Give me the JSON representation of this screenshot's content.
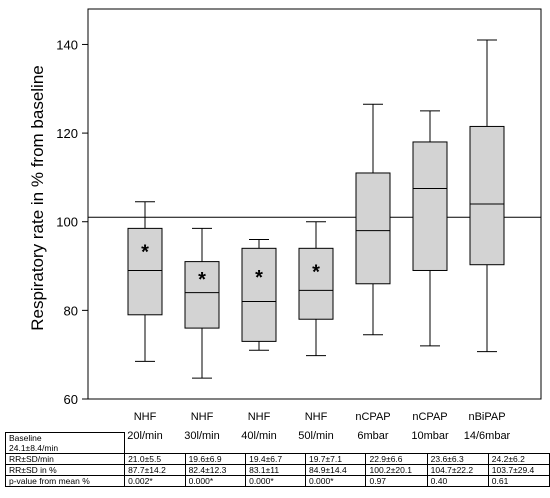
{
  "chart_data": {
    "type": "box",
    "ylabel": "Respiratory rate in % from baseline",
    "yticks": [
      "60",
      "80",
      "100",
      "120",
      "140"
    ],
    "ylim": [
      60,
      148
    ],
    "reference_line": 101,
    "categories": [
      {
        "line1": "NHF",
        "line2": "20l/min"
      },
      {
        "line1": "NHF",
        "line2": "30l/min"
      },
      {
        "line1": "NHF",
        "line2": "40l/min"
      },
      {
        "line1": "NHF",
        "line2": "50l/min"
      },
      {
        "line1": "nCPAP",
        "line2": "6mbar"
      },
      {
        "line1": "nCPAP",
        "line2": "10mbar"
      },
      {
        "line1": "nBiPAP",
        "line2": "14/6mbar"
      }
    ],
    "boxes": [
      {
        "min": 68.5,
        "q1": 79,
        "median": 89,
        "q3": 98.5,
        "max": 104.5,
        "star": "*"
      },
      {
        "min": 64.7,
        "q1": 76,
        "median": 84,
        "q3": 91,
        "max": 98.5,
        "star": "*"
      },
      {
        "min": 71,
        "q1": 73,
        "median": 82,
        "q3": 94,
        "max": 96,
        "star": "*"
      },
      {
        "min": 69.8,
        "q1": 78,
        "median": 84.5,
        "q3": 94,
        "max": 100,
        "star": "*"
      },
      {
        "min": 74.5,
        "q1": 86,
        "median": 98,
        "q3": 111,
        "max": 126.5,
        "star": ""
      },
      {
        "min": 72,
        "q1": 89,
        "median": 107.5,
        "q3": 118,
        "max": 125,
        "star": ""
      },
      {
        "min": 70.7,
        "q1": 90.3,
        "median": 104,
        "q3": 121.5,
        "max": 141,
        "star": ""
      }
    ],
    "box_fill": "#d3d3d3",
    "table": {
      "baseline_label_line1": "Baseline",
      "baseline_label_line2": "24.1±8.4/min",
      "rows": [
        {
          "label": "RR±SD/min",
          "values": [
            "21.0±5.5",
            "19.6±6.9",
            "19.4±6.7",
            "19.7±7.1",
            "22.9±6.6",
            "23.6±6.3",
            "24.2±6.2"
          ]
        },
        {
          "label": "RR±SD in %",
          "values": [
            "87.7±14.2",
            "82.4±12.3",
            "83.1±11",
            "84.9±14.4",
            "100.2±20.1",
            "104.7±22.2",
            "103.7±29.4"
          ]
        },
        {
          "label": "p-value from mean %",
          "values": [
            "0.002*",
            "0.000*",
            "0.000*",
            "0.000*",
            "0.97",
            "0.40",
            "0.61"
          ]
        }
      ]
    }
  }
}
